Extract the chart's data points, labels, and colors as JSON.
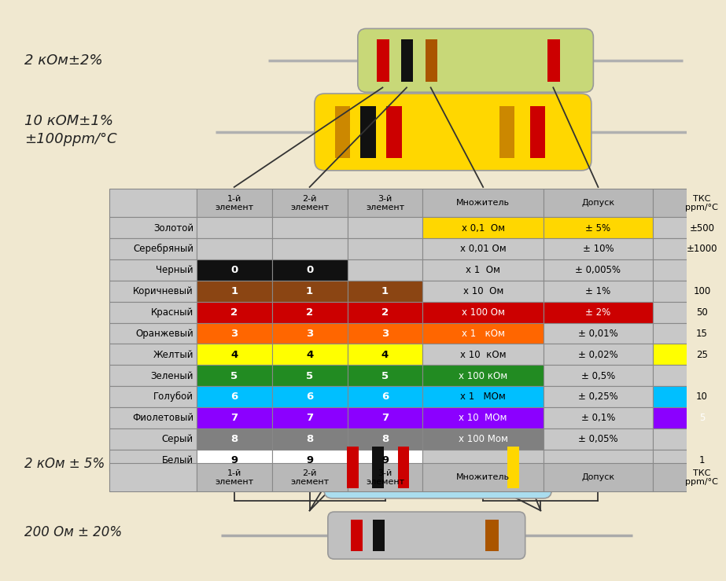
{
  "bg_color": "#f0e8d0",
  "rows": [
    {
      "name": "Золотой",
      "col1": "",
      "col2": "",
      "col3": "",
      "mult": "x 0,1  Ом",
      "tol": "± 5%",
      "tks": "±500",
      "c1": null,
      "c2": null,
      "c3": null,
      "cm": "#FFD700",
      "ct": "#FFD700",
      "ck": "#c8c8c8",
      "tm": "#000000",
      "tt": "#000000",
      "tk": "#000000"
    },
    {
      "name": "Серебряный",
      "col1": "",
      "col2": "",
      "col3": "",
      "mult": "x 0,01 Ом",
      "tol": "± 10%",
      "tks": "±1000",
      "c1": null,
      "c2": null,
      "c3": null,
      "cm": "#c8c8c8",
      "ct": "#c8c8c8",
      "ck": "#c8c8c8",
      "tm": "#000000",
      "tt": "#000000",
      "tk": "#000000"
    },
    {
      "name": "Черный",
      "col1": "0",
      "col2": "0",
      "col3": "",
      "mult": "x 1  Ом",
      "tol": "± 0,005%",
      "tks": "",
      "c1": "#111111",
      "c2": "#111111",
      "c3": null,
      "cm": "#c8c8c8",
      "ct": "#c8c8c8",
      "ck": null,
      "tm": "#000000",
      "tt": "#000000",
      "tk": "#000000"
    },
    {
      "name": "Коричневый",
      "col1": "1",
      "col2": "1",
      "col3": "1",
      "mult": "x 10  Ом",
      "tol": "± 1%",
      "tks": "100",
      "c1": "#8B4513",
      "c2": "#8B4513",
      "c3": "#8B4513",
      "cm": "#c8c8c8",
      "ct": "#c8c8c8",
      "ck": "#c8c8c8",
      "tm": "#000000",
      "tt": "#000000",
      "tk": "#000000"
    },
    {
      "name": "Красный",
      "col1": "2",
      "col2": "2",
      "col3": "2",
      "mult": "x 100 Ом",
      "tol": "± 2%",
      "tks": "50",
      "c1": "#cc0000",
      "c2": "#cc0000",
      "c3": "#cc0000",
      "cm": "#cc0000",
      "ct": "#cc0000",
      "ck": "#c8c8c8",
      "tm": "#ffffff",
      "tt": "#ffffff",
      "tk": "#000000"
    },
    {
      "name": "Оранжевый",
      "col1": "3",
      "col2": "3",
      "col3": "3",
      "mult": "x 1   кОм",
      "tol": "± 0,01%",
      "tks": "15",
      "c1": "#FF6600",
      "c2": "#FF6600",
      "c3": "#FF6600",
      "cm": "#FF6600",
      "ct": "#c8c8c8",
      "ck": "#c8c8c8",
      "tm": "#ffffff",
      "tt": "#000000",
      "tk": "#000000"
    },
    {
      "name": "Желтый",
      "col1": "4",
      "col2": "4",
      "col3": "4",
      "mult": "x 10  кОм",
      "tol": "± 0,02%",
      "tks": "25",
      "c1": "#FFFF00",
      "c2": "#FFFF00",
      "c3": "#FFFF00",
      "cm": "#c8c8c8",
      "ct": "#c8c8c8",
      "ck": "#FFFF00",
      "tm": "#000000",
      "tt": "#000000",
      "tk": "#000000"
    },
    {
      "name": "Зеленый",
      "col1": "5",
      "col2": "5",
      "col3": "5",
      "mult": "x 100 кОм",
      "tol": "± 0,5%",
      "tks": "",
      "c1": "#228B22",
      "c2": "#228B22",
      "c3": "#228B22",
      "cm": "#228B22",
      "ct": "#c8c8c8",
      "ck": null,
      "tm": "#ffffff",
      "tt": "#000000",
      "tk": "#000000"
    },
    {
      "name": "Голубой",
      "col1": "6",
      "col2": "6",
      "col3": "6",
      "mult": "x 1   МОм",
      "tol": "± 0,25%",
      "tks": "10",
      "c1": "#00BFFF",
      "c2": "#00BFFF",
      "c3": "#00BFFF",
      "cm": "#00BFFF",
      "ct": "#c8c8c8",
      "ck": "#00BFFF",
      "tm": "#000000",
      "tt": "#000000",
      "tk": "#000000"
    },
    {
      "name": "Фиолетовый",
      "col1": "7",
      "col2": "7",
      "col3": "7",
      "mult": "x 10  МОм",
      "tol": "± 0,1%",
      "tks": "5",
      "c1": "#8B00FF",
      "c2": "#8B00FF",
      "c3": "#8B00FF",
      "cm": "#8B00FF",
      "ct": "#c8c8c8",
      "ck": "#8B00FF",
      "tm": "#ffffff",
      "tt": "#000000",
      "tk": "#ffffff"
    },
    {
      "name": "Серый",
      "col1": "8",
      "col2": "8",
      "col3": "8",
      "mult": "x 100 Мом",
      "tol": "± 0,05%",
      "tks": "",
      "c1": "#808080",
      "c2": "#808080",
      "c3": "#808080",
      "cm": "#808080",
      "ct": "#c8c8c8",
      "ck": null,
      "tm": "#ffffff",
      "tt": "#000000",
      "tk": "#000000"
    },
    {
      "name": "Белый",
      "col1": "9",
      "col2": "9",
      "col3": "9",
      "mult": "",
      "tol": "",
      "tks": "1",
      "c1": "#ffffff",
      "c2": "#ffffff",
      "c3": "#ffffff",
      "cm": null,
      "ct": null,
      "ck": null,
      "tm": "#000000",
      "tt": "#000000",
      "tk": "#000000"
    }
  ],
  "header": [
    "1-й\nэлемент",
    "2-й\nэлемент",
    "3-й\nэлемент",
    "Множитель",
    "Допуск",
    "ТКС\nppm/°C"
  ],
  "res1_label": "2 кОм±2%",
  "res2_label1": "10 кОМ±1%",
  "res2_label2": "±100ppm/°C",
  "res3_label": "2 кОм ± 5%",
  "res4_label": "200 Ом ± 20%"
}
